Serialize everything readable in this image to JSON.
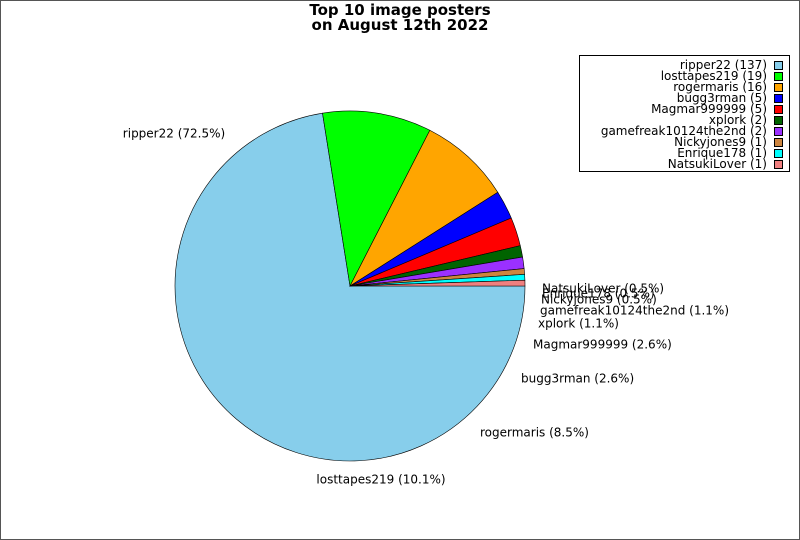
{
  "chart_data": {
    "type": "pie",
    "title_lines": [
      "Top 10 image posters",
      "on August 12th 2022"
    ],
    "slices": [
      {
        "name": "ripper22",
        "value": 137,
        "percent_label": "72.5%",
        "legend_label": "ripper22 (137)",
        "pie_label": "ripper22 (72.5%)",
        "color": "#87CEEB"
      },
      {
        "name": "losttapes219",
        "value": 19,
        "percent_label": "10.1%",
        "legend_label": "losttapes219 (19)",
        "pie_label": "losttapes219 (10.1%)",
        "color": "#00FF00"
      },
      {
        "name": "rogermaris",
        "value": 16,
        "percent_label": "8.5%",
        "legend_label": "rogermaris (16)",
        "pie_label": "rogermaris (8.5%)",
        "color": "#FFA500"
      },
      {
        "name": "bugg3rman",
        "value": 5,
        "percent_label": "2.6%",
        "legend_label": "bugg3rman (5)",
        "pie_label": "bugg3rman (2.6%)",
        "color": "#0000FF"
      },
      {
        "name": "Magmar999999",
        "value": 5,
        "percent_label": "2.6%",
        "legend_label": "Magmar999999 (5)",
        "pie_label": "Magmar999999 (2.6%)",
        "color": "#FF0000"
      },
      {
        "name": "xplork",
        "value": 2,
        "percent_label": "1.1%",
        "legend_label": "xplork (2)",
        "pie_label": "xplork (1.1%)",
        "color": "#006400"
      },
      {
        "name": "gamefreak10124the2nd",
        "value": 2,
        "percent_label": "1.1%",
        "legend_label": "gamefreak10124the2nd (2)",
        "pie_label": "gamefreak10124the2nd (1.1%)",
        "color": "#9B30FF"
      },
      {
        "name": "Nickyjones9",
        "value": 1,
        "percent_label": "0.5%",
        "legend_label": "Nickyjones9 (1)",
        "pie_label": "Nickyjones9 (0.5%)",
        "color": "#CD853F"
      },
      {
        "name": "Enrique178",
        "value": 1,
        "percent_label": "0.5%",
        "legend_label": "Enrique178 (1)",
        "pie_label": "Enrique178 (0.5%)",
        "color": "#00FFFF"
      },
      {
        "name": "NatsukiLover",
        "value": 1,
        "percent_label": "0.5%",
        "legend_label": "NatsukiLover (1)",
        "pie_label": "NatsukiLover (0.5%)",
        "color": "#F08080"
      }
    ],
    "start_angle": "east",
    "direction": "clockwise",
    "legend_position": "top-right"
  }
}
